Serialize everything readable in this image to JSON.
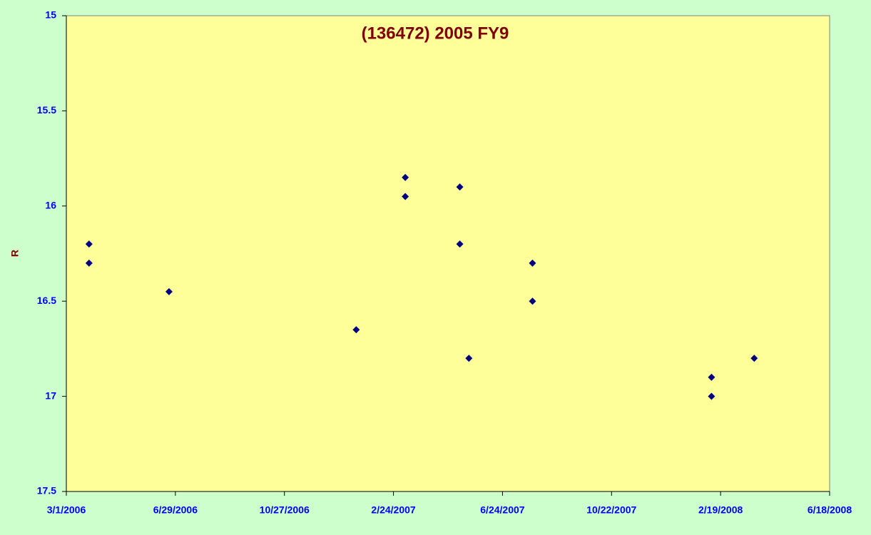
{
  "chart_data": {
    "type": "scatter",
    "title": "(136472) 2005 FY9",
    "y_label": "R",
    "x": [
      "2006-03-26",
      "2006-03-26",
      "2006-06-22",
      "2007-01-14",
      "2007-03-09",
      "2007-03-09",
      "2007-05-08",
      "2007-05-08",
      "2007-05-18",
      "2007-07-27",
      "2007-07-27",
      "2008-02-09",
      "2008-02-09",
      "2008-03-27"
    ],
    "values": [
      16.2,
      16.3,
      16.45,
      16.65,
      15.85,
      15.95,
      15.9,
      16.2,
      16.8,
      16.3,
      16.5,
      16.9,
      17.0,
      16.8
    ],
    "color": "#000080",
    "xlim": [
      "2006-03-01",
      "2008-06-18"
    ],
    "xticks": [
      {
        "value": "2006-03-01",
        "label": "3/1/2006"
      },
      {
        "value": "2006-06-29",
        "label": "6/29/2006"
      },
      {
        "value": "2006-10-27",
        "label": "10/27/2006"
      },
      {
        "value": "2007-02-24",
        "label": "2/24/2007"
      },
      {
        "value": "2007-06-24",
        "label": "6/24/2007"
      },
      {
        "value": "2007-10-22",
        "label": "10/22/2007"
      },
      {
        "value": "2008-02-19",
        "label": "2/19/2008"
      },
      {
        "value": "2008-06-18",
        "label": "6/18/2008"
      }
    ],
    "ylim": [
      15,
      17.5
    ],
    "yticks": [
      15,
      15.5,
      16,
      16.5,
      17,
      17.5
    ],
    "y_reversed": true
  }
}
